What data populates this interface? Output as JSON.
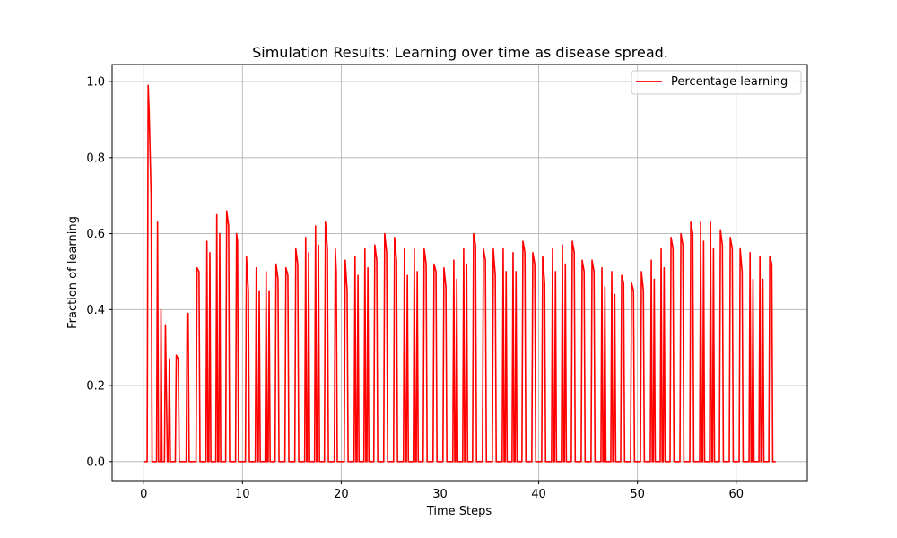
{
  "chart_data": {
    "type": "line",
    "title": "Simulation Results: Learning over time as disease spread.",
    "xlabel": "Time Steps",
    "ylabel": "Fraction of learning",
    "xlim": [
      -3.2,
      67.2
    ],
    "ylim": [
      -0.05,
      1.045
    ],
    "xticks": [
      0,
      10,
      20,
      30,
      40,
      50,
      60
    ],
    "yticks": [
      0.0,
      0.2,
      0.4,
      0.6,
      0.8,
      1.0
    ],
    "grid": true,
    "legend_position": "top-right",
    "series": [
      {
        "name": "Percentage learning",
        "color": "#ff0000",
        "points": [
          [
            0,
            0
          ],
          [
            0.35,
            0
          ],
          [
            0.45,
            0.99
          ],
          [
            0.55,
            0.92
          ],
          [
            0.75,
            0.7
          ],
          [
            0.85,
            0
          ],
          [
            1.3,
            0
          ],
          [
            1.4,
            0.63
          ],
          [
            1.5,
            0
          ],
          [
            1.7,
            0
          ],
          [
            1.75,
            0.4
          ],
          [
            1.85,
            0
          ],
          [
            2.1,
            0
          ],
          [
            2.2,
            0.36
          ],
          [
            2.4,
            0
          ],
          [
            2.5,
            0
          ],
          [
            2.6,
            0.27
          ],
          [
            2.7,
            0
          ],
          [
            3.2,
            0
          ],
          [
            3.3,
            0.28
          ],
          [
            3.5,
            0.27
          ],
          [
            3.6,
            0
          ],
          [
            4.3,
            0
          ],
          [
            4.4,
            0.39
          ],
          [
            4.5,
            0.39
          ],
          [
            4.6,
            0
          ],
          [
            5.3,
            0
          ],
          [
            5.4,
            0.51
          ],
          [
            5.6,
            0.5
          ],
          [
            5.7,
            0
          ],
          [
            6.3,
            0
          ],
          [
            6.4,
            0.58
          ],
          [
            6.5,
            0
          ],
          [
            6.6,
            0
          ],
          [
            6.7,
            0.55
          ],
          [
            6.8,
            0
          ],
          [
            7.3,
            0
          ],
          [
            7.4,
            0.65
          ],
          [
            7.5,
            0
          ],
          [
            7.6,
            0
          ],
          [
            7.7,
            0.6
          ],
          [
            7.8,
            0
          ],
          [
            8.3,
            0
          ],
          [
            8.4,
            0.66
          ],
          [
            8.6,
            0.62
          ],
          [
            8.7,
            0
          ],
          [
            9.3,
            0
          ],
          [
            9.4,
            0.6
          ],
          [
            9.5,
            0.58
          ],
          [
            9.6,
            0
          ],
          [
            10.3,
            0
          ],
          [
            10.4,
            0.54
          ],
          [
            10.6,
            0.45
          ],
          [
            10.7,
            0
          ],
          [
            11.3,
            0
          ],
          [
            11.4,
            0.51
          ],
          [
            11.5,
            0
          ],
          [
            11.6,
            0
          ],
          [
            11.7,
            0.45
          ],
          [
            11.8,
            0
          ],
          [
            12.3,
            0
          ],
          [
            12.4,
            0.5
          ],
          [
            12.5,
            0
          ],
          [
            12.6,
            0
          ],
          [
            12.7,
            0.45
          ],
          [
            12.8,
            0
          ],
          [
            13.3,
            0
          ],
          [
            13.4,
            0.52
          ],
          [
            13.6,
            0.48
          ],
          [
            13.7,
            0
          ],
          [
            14.3,
            0
          ],
          [
            14.4,
            0.51
          ],
          [
            14.6,
            0.49
          ],
          [
            14.7,
            0
          ],
          [
            15.3,
            0
          ],
          [
            15.4,
            0.56
          ],
          [
            15.6,
            0.52
          ],
          [
            15.7,
            0
          ],
          [
            16.3,
            0
          ],
          [
            16.4,
            0.59
          ],
          [
            16.5,
            0
          ],
          [
            16.6,
            0
          ],
          [
            16.7,
            0.55
          ],
          [
            16.8,
            0
          ],
          [
            17.3,
            0
          ],
          [
            17.4,
            0.62
          ],
          [
            17.5,
            0
          ],
          [
            17.6,
            0
          ],
          [
            17.7,
            0.57
          ],
          [
            17.8,
            0
          ],
          [
            18.3,
            0
          ],
          [
            18.4,
            0.63
          ],
          [
            18.6,
            0.56
          ],
          [
            18.7,
            0
          ],
          [
            19.3,
            0
          ],
          [
            19.4,
            0.56
          ],
          [
            19.5,
            0.5
          ],
          [
            19.6,
            0
          ],
          [
            20.3,
            0
          ],
          [
            20.4,
            0.53
          ],
          [
            20.6,
            0.45
          ],
          [
            20.7,
            0
          ],
          [
            21.3,
            0
          ],
          [
            21.4,
            0.54
          ],
          [
            21.5,
            0
          ],
          [
            21.6,
            0
          ],
          [
            21.7,
            0.49
          ],
          [
            21.8,
            0
          ],
          [
            22.3,
            0
          ],
          [
            22.4,
            0.56
          ],
          [
            22.5,
            0
          ],
          [
            22.6,
            0
          ],
          [
            22.7,
            0.51
          ],
          [
            22.8,
            0
          ],
          [
            23.3,
            0
          ],
          [
            23.4,
            0.57
          ],
          [
            23.6,
            0.53
          ],
          [
            23.7,
            0
          ],
          [
            24.3,
            0
          ],
          [
            24.4,
            0.6
          ],
          [
            24.6,
            0.55
          ],
          [
            24.7,
            0
          ],
          [
            25.3,
            0
          ],
          [
            25.4,
            0.59
          ],
          [
            25.6,
            0.53
          ],
          [
            25.7,
            0
          ],
          [
            26.3,
            0
          ],
          [
            26.4,
            0.56
          ],
          [
            26.5,
            0
          ],
          [
            26.6,
            0
          ],
          [
            26.7,
            0.49
          ],
          [
            26.8,
            0
          ],
          [
            27.3,
            0
          ],
          [
            27.4,
            0.56
          ],
          [
            27.5,
            0
          ],
          [
            27.6,
            0
          ],
          [
            27.7,
            0.5
          ],
          [
            27.8,
            0
          ],
          [
            28.3,
            0
          ],
          [
            28.4,
            0.56
          ],
          [
            28.6,
            0.52
          ],
          [
            28.7,
            0
          ],
          [
            29.3,
            0
          ],
          [
            29.4,
            0.52
          ],
          [
            29.6,
            0.5
          ],
          [
            29.7,
            0
          ],
          [
            30.3,
            0
          ],
          [
            30.4,
            0.51
          ],
          [
            30.6,
            0.46
          ],
          [
            30.7,
            0
          ],
          [
            31.3,
            0
          ],
          [
            31.4,
            0.53
          ],
          [
            31.5,
            0
          ],
          [
            31.6,
            0
          ],
          [
            31.7,
            0.48
          ],
          [
            31.8,
            0
          ],
          [
            32.3,
            0
          ],
          [
            32.4,
            0.56
          ],
          [
            32.5,
            0
          ],
          [
            32.6,
            0
          ],
          [
            32.7,
            0.52
          ],
          [
            32.8,
            0
          ],
          [
            33.3,
            0
          ],
          [
            33.4,
            0.6
          ],
          [
            33.6,
            0.57
          ],
          [
            33.7,
            0
          ],
          [
            34.3,
            0
          ],
          [
            34.4,
            0.56
          ],
          [
            34.6,
            0.53
          ],
          [
            34.7,
            0
          ],
          [
            35.3,
            0
          ],
          [
            35.4,
            0.56
          ],
          [
            35.6,
            0.49
          ],
          [
            35.7,
            0
          ],
          [
            36.3,
            0
          ],
          [
            36.4,
            0.56
          ],
          [
            36.5,
            0
          ],
          [
            36.6,
            0
          ],
          [
            36.7,
            0.5
          ],
          [
            36.8,
            0
          ],
          [
            37.3,
            0
          ],
          [
            37.4,
            0.55
          ],
          [
            37.5,
            0
          ],
          [
            37.6,
            0
          ],
          [
            37.7,
            0.5
          ],
          [
            37.8,
            0
          ],
          [
            38.3,
            0
          ],
          [
            38.4,
            0.58
          ],
          [
            38.6,
            0.55
          ],
          [
            38.7,
            0
          ],
          [
            39.3,
            0
          ],
          [
            39.4,
            0.55
          ],
          [
            39.6,
            0.52
          ],
          [
            39.7,
            0
          ],
          [
            40.3,
            0
          ],
          [
            40.4,
            0.54
          ],
          [
            40.6,
            0.47
          ],
          [
            40.7,
            0
          ],
          [
            41.3,
            0
          ],
          [
            41.4,
            0.56
          ],
          [
            41.5,
            0
          ],
          [
            41.6,
            0
          ],
          [
            41.7,
            0.5
          ],
          [
            41.8,
            0
          ],
          [
            42.3,
            0
          ],
          [
            42.4,
            0.57
          ],
          [
            42.5,
            0
          ],
          [
            42.6,
            0
          ],
          [
            42.7,
            0.52
          ],
          [
            42.8,
            0
          ],
          [
            43.3,
            0
          ],
          [
            43.4,
            0.58
          ],
          [
            43.6,
            0.55
          ],
          [
            43.7,
            0
          ],
          [
            44.3,
            0
          ],
          [
            44.4,
            0.53
          ],
          [
            44.6,
            0.5
          ],
          [
            44.7,
            0
          ],
          [
            45.3,
            0
          ],
          [
            45.4,
            0.53
          ],
          [
            45.6,
            0.5
          ],
          [
            45.7,
            0
          ],
          [
            46.3,
            0
          ],
          [
            46.4,
            0.51
          ],
          [
            46.5,
            0
          ],
          [
            46.6,
            0
          ],
          [
            46.7,
            0.46
          ],
          [
            46.8,
            0
          ],
          [
            47.3,
            0
          ],
          [
            47.4,
            0.5
          ],
          [
            47.5,
            0
          ],
          [
            47.6,
            0
          ],
          [
            47.7,
            0.44
          ],
          [
            47.8,
            0
          ],
          [
            48.3,
            0
          ],
          [
            48.4,
            0.49
          ],
          [
            48.6,
            0.47
          ],
          [
            48.7,
            0
          ],
          [
            49.3,
            0
          ],
          [
            49.4,
            0.47
          ],
          [
            49.6,
            0.45
          ],
          [
            49.7,
            0
          ],
          [
            50.3,
            0
          ],
          [
            50.4,
            0.5
          ],
          [
            50.6,
            0.45
          ],
          [
            50.7,
            0
          ],
          [
            51.3,
            0
          ],
          [
            51.4,
            0.53
          ],
          [
            51.5,
            0
          ],
          [
            51.6,
            0
          ],
          [
            51.7,
            0.48
          ],
          [
            51.8,
            0
          ],
          [
            52.3,
            0
          ],
          [
            52.4,
            0.56
          ],
          [
            52.5,
            0
          ],
          [
            52.6,
            0
          ],
          [
            52.7,
            0.51
          ],
          [
            52.8,
            0
          ],
          [
            53.3,
            0
          ],
          [
            53.4,
            0.59
          ],
          [
            53.6,
            0.56
          ],
          [
            53.7,
            0
          ],
          [
            54.3,
            0
          ],
          [
            54.4,
            0.6
          ],
          [
            54.6,
            0.57
          ],
          [
            54.7,
            0
          ],
          [
            55.3,
            0
          ],
          [
            55.4,
            0.63
          ],
          [
            55.6,
            0.6
          ],
          [
            55.7,
            0
          ],
          [
            56.3,
            0
          ],
          [
            56.4,
            0.63
          ],
          [
            56.5,
            0
          ],
          [
            56.6,
            0
          ],
          [
            56.7,
            0.58
          ],
          [
            56.8,
            0
          ],
          [
            57.3,
            0
          ],
          [
            57.4,
            0.63
          ],
          [
            57.5,
            0
          ],
          [
            57.6,
            0
          ],
          [
            57.7,
            0.56
          ],
          [
            57.8,
            0
          ],
          [
            58.3,
            0
          ],
          [
            58.4,
            0.61
          ],
          [
            58.6,
            0.57
          ],
          [
            58.7,
            0
          ],
          [
            59.3,
            0
          ],
          [
            59.4,
            0.59
          ],
          [
            59.6,
            0.56
          ],
          [
            59.7,
            0
          ],
          [
            60.3,
            0
          ],
          [
            60.4,
            0.56
          ],
          [
            60.6,
            0.5
          ],
          [
            60.7,
            0
          ],
          [
            61.3,
            0
          ],
          [
            61.4,
            0.55
          ],
          [
            61.5,
            0
          ],
          [
            61.6,
            0
          ],
          [
            61.7,
            0.48
          ],
          [
            61.8,
            0
          ],
          [
            62.3,
            0
          ],
          [
            62.4,
            0.54
          ],
          [
            62.5,
            0
          ],
          [
            62.6,
            0
          ],
          [
            62.7,
            0.48
          ],
          [
            62.8,
            0
          ],
          [
            63.3,
            0
          ],
          [
            63.4,
            0.54
          ],
          [
            63.6,
            0.52
          ],
          [
            63.7,
            0
          ],
          [
            64,
            0
          ]
        ]
      }
    ]
  }
}
